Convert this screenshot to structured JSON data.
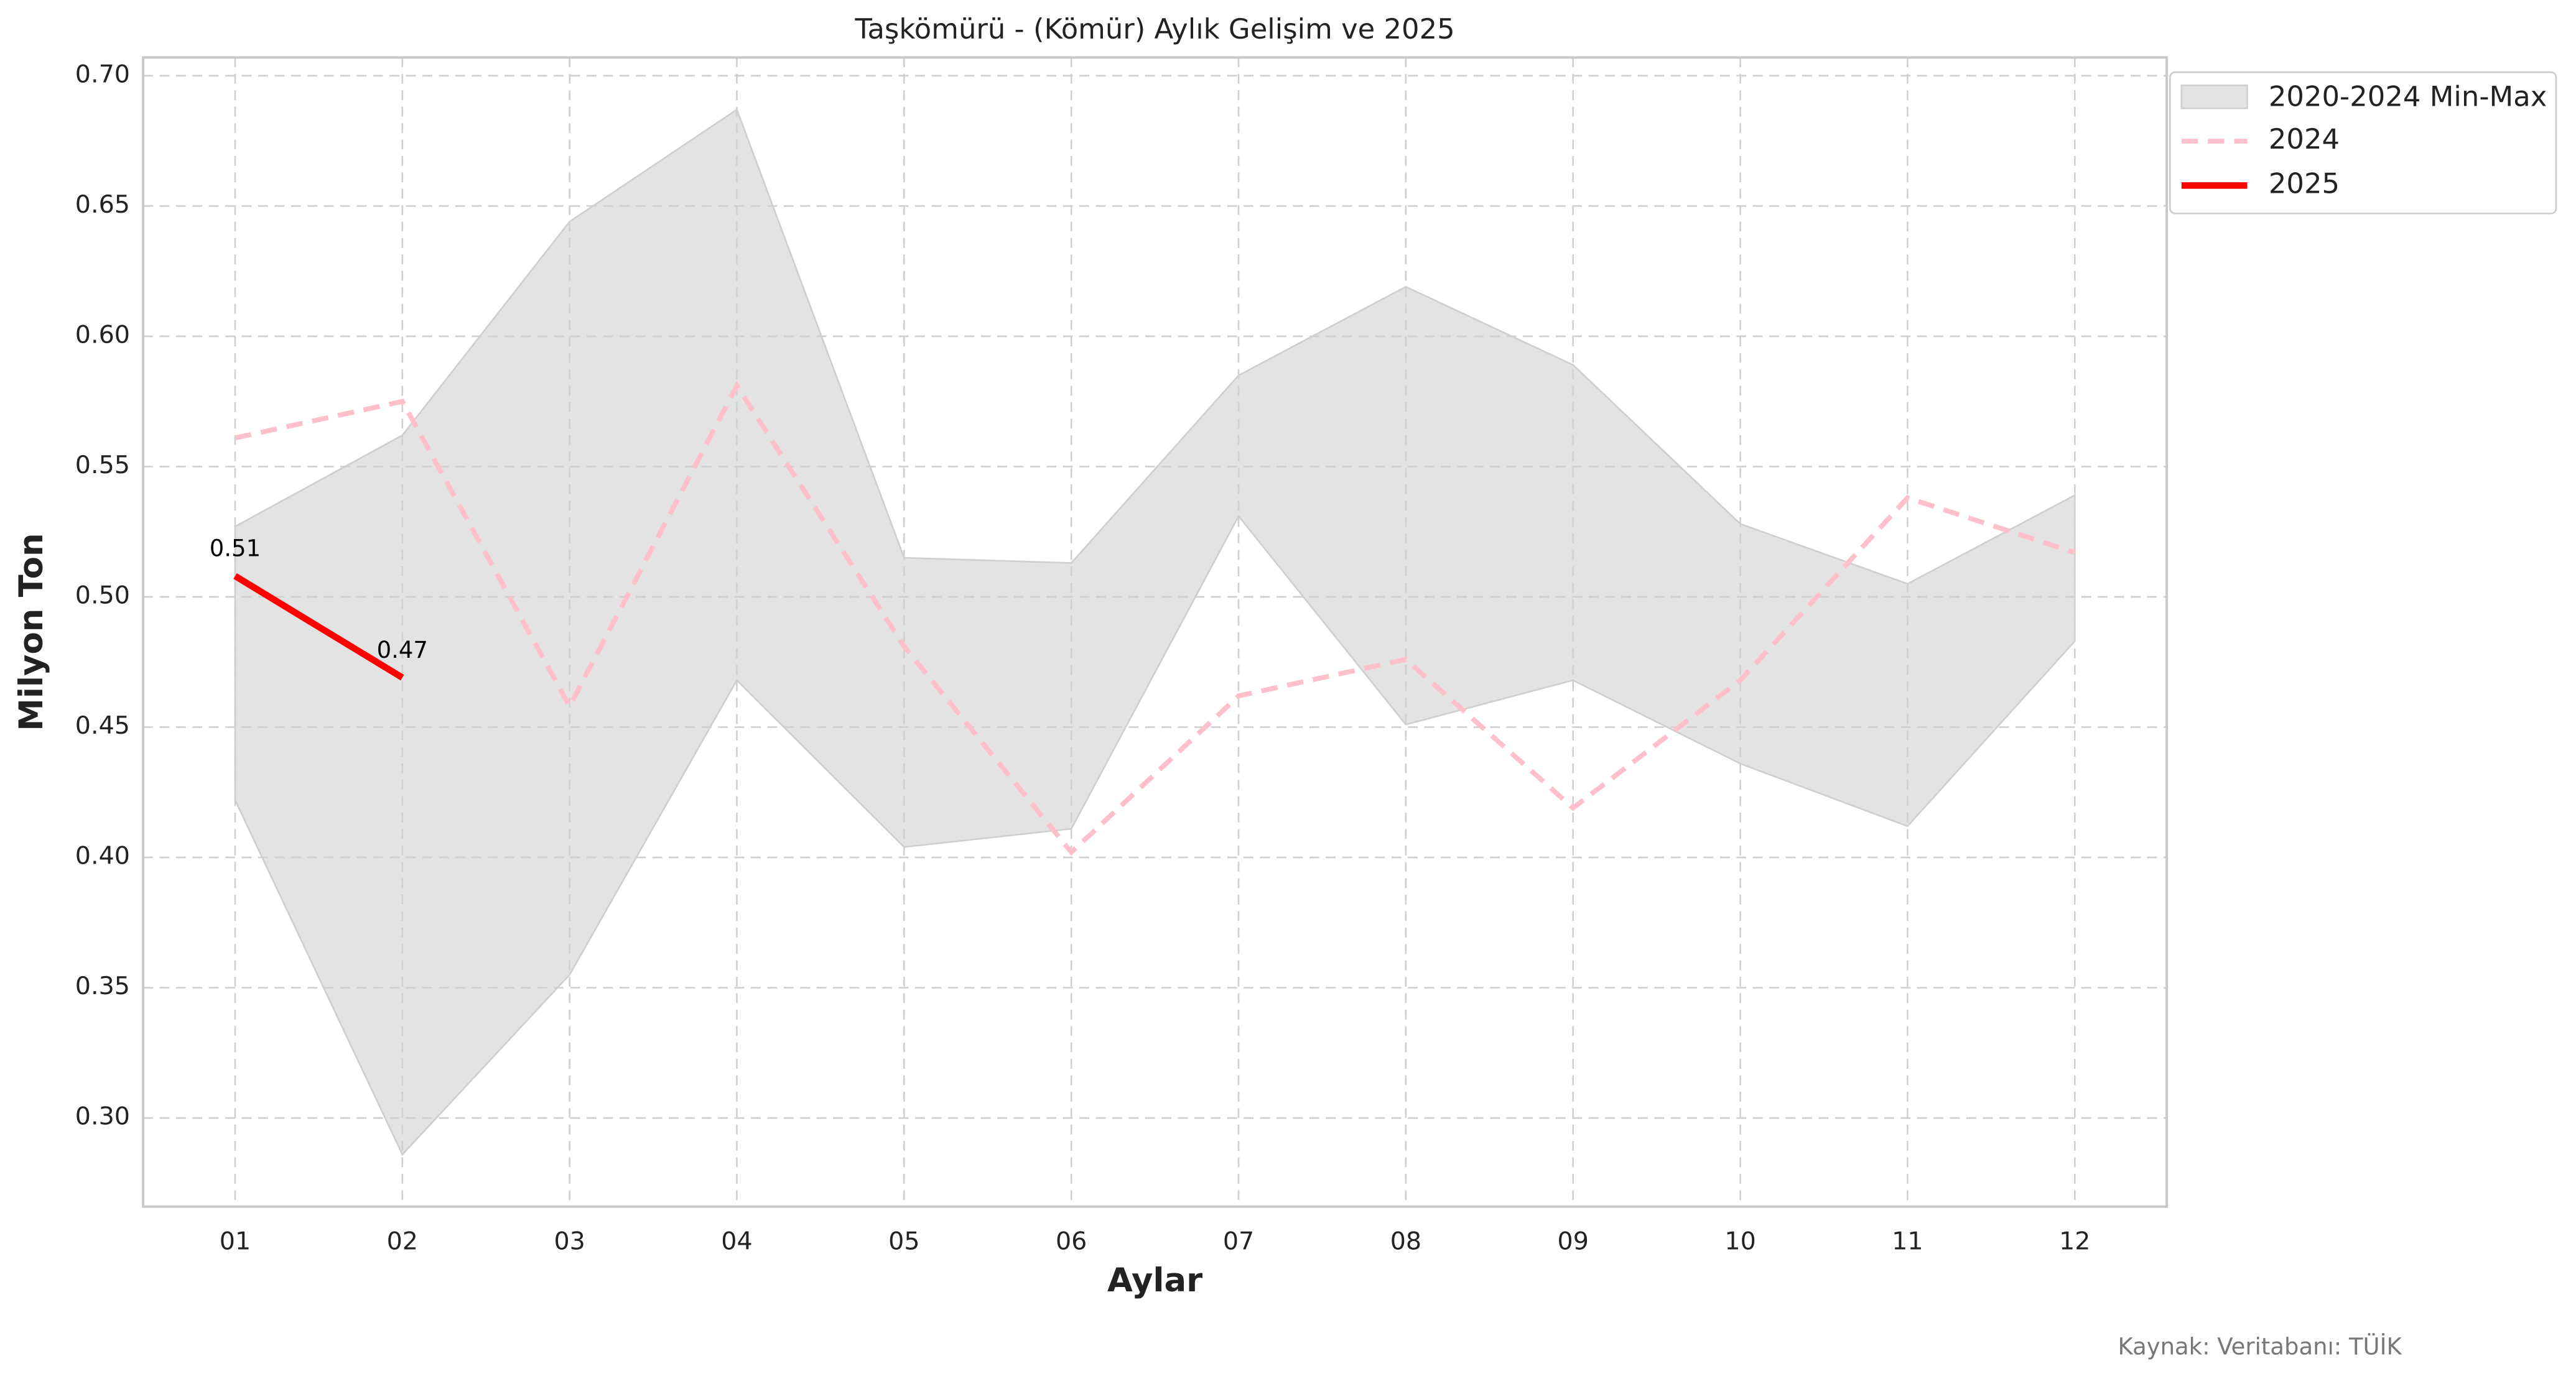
{
  "chart_data": {
    "type": "line",
    "title": "Taşkömürü - (Kömür) Aylık Gelişim ve 2025",
    "xlabel": "Aylar",
    "ylabel": "Milyon Ton",
    "source": "Kaynak: Veritabanı: TÜİK",
    "categories": [
      "01",
      "02",
      "03",
      "04",
      "05",
      "06",
      "07",
      "08",
      "09",
      "10",
      "11",
      "12"
    ],
    "band": {
      "name": "2020-2024 Min-Max",
      "color": "#d9d9d9",
      "lower": [
        0.422,
        0.286,
        0.355,
        0.468,
        0.404,
        0.411,
        0.531,
        0.451,
        0.468,
        0.436,
        0.412,
        0.483
      ],
      "upper": [
        0.527,
        0.562,
        0.644,
        0.687,
        0.515,
        0.513,
        0.585,
        0.619,
        0.589,
        0.528,
        0.505,
        0.539
      ]
    },
    "series": [
      {
        "name": "2024",
        "color": "#ffc0cb",
        "dashed": true,
        "values": [
          0.561,
          0.575,
          0.458,
          0.581,
          0.481,
          0.402,
          0.462,
          0.476,
          0.419,
          0.468,
          0.538,
          0.517
        ]
      },
      {
        "name": "2025",
        "color": "#ff0000",
        "dashed": false,
        "values": [
          0.508,
          0.469,
          null,
          null,
          null,
          null,
          null,
          null,
          null,
          null,
          null,
          null
        ],
        "value_labels": [
          "0.51",
          "0.47",
          null,
          null,
          null,
          null,
          null,
          null,
          null,
          null,
          null,
          null
        ]
      }
    ],
    "ylim": [
      0.266,
      0.707
    ],
    "yticks": [
      {
        "value": 0.3,
        "label": "0.30"
      },
      {
        "value": 0.35,
        "label": "0.35"
      },
      {
        "value": 0.4,
        "label": "0.40"
      },
      {
        "value": 0.45,
        "label": "0.45"
      },
      {
        "value": 0.5,
        "label": "0.50"
      },
      {
        "value": 0.55,
        "label": "0.55"
      },
      {
        "value": 0.6,
        "label": "0.60"
      },
      {
        "value": 0.65,
        "label": "0.65"
      },
      {
        "value": 0.7,
        "label": "0.70"
      }
    ],
    "grid": true,
    "legend": "upper right outside"
  }
}
